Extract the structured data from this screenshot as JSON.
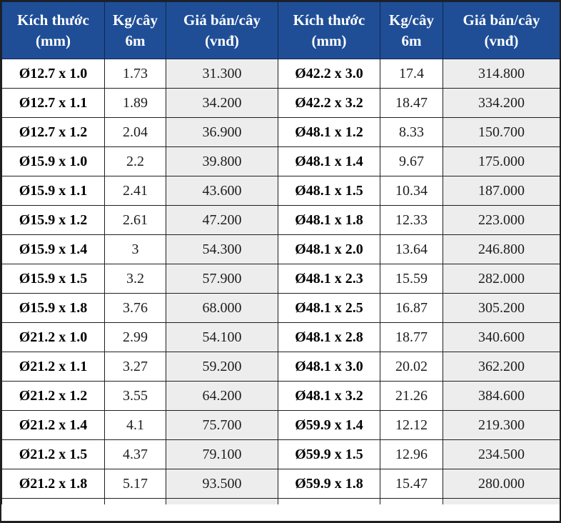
{
  "colors": {
    "header_bg": "#1F4E96",
    "price_column_bg": "#EEEDED",
    "border": "#1F1F1F",
    "header_text": "#FFFFFF"
  },
  "table": {
    "headers": [
      {
        "title": "Kích thước",
        "unit": "(mm)"
      },
      {
        "title": "Kg/cây",
        "unit": "6m"
      },
      {
        "title": "Giá bán/cây",
        "unit": "(vnđ)"
      },
      {
        "title": "Kích thước",
        "unit": "(mm)"
      },
      {
        "title": "Kg/cây",
        "unit": "6m"
      },
      {
        "title": "Giá bán/cây",
        "unit": "(vnđ)"
      }
    ],
    "rows": [
      {
        "size_left": "Ø12.7 x 1.0",
        "kg_left": "1.73",
        "price_left": "31.300",
        "size_right": "Ø42.2 x 3.0",
        "kg_right": "17.4",
        "price_right": "314.800"
      },
      {
        "size_left": "Ø12.7 x 1.1",
        "kg_left": "1.89",
        "price_left": "34.200",
        "size_right": "Ø42.2 x 3.2",
        "kg_right": "18.47",
        "price_right": "334.200"
      },
      {
        "size_left": "Ø12.7 x 1.2",
        "kg_left": "2.04",
        "price_left": "36.900",
        "size_right": "Ø48.1 x 1.2",
        "kg_right": "8.33",
        "price_right": "150.700"
      },
      {
        "size_left": "Ø15.9 x 1.0",
        "kg_left": "2.2",
        "price_left": "39.800",
        "size_right": "Ø48.1 x 1.4",
        "kg_right": "9.67",
        "price_right": "175.000"
      },
      {
        "size_left": "Ø15.9 x 1.1",
        "kg_left": "2.41",
        "price_left": "43.600",
        "size_right": "Ø48.1 x 1.5",
        "kg_right": "10.34",
        "price_right": "187.000"
      },
      {
        "size_left": "Ø15.9 x 1.2",
        "kg_left": "2.61",
        "price_left": "47.200",
        "size_right": "Ø48.1 x 1.8",
        "kg_right": "12.33",
        "price_right": "223.000"
      },
      {
        "size_left": "Ø15.9 x 1.4",
        "kg_left": "3",
        "price_left": "54.300",
        "size_right": "Ø48.1 x 2.0",
        "kg_right": "13.64",
        "price_right": "246.800"
      },
      {
        "size_left": "Ø15.9 x 1.5",
        "kg_left": "3.2",
        "price_left": "57.900",
        "size_right": "Ø48.1 x 2.3",
        "kg_right": "15.59",
        "price_right": "282.000"
      },
      {
        "size_left": "Ø15.9 x 1.8",
        "kg_left": "3.76",
        "price_left": "68.000",
        "size_right": "Ø48.1 x 2.5",
        "kg_right": "16.87",
        "price_right": "305.200"
      },
      {
        "size_left": "Ø21.2 x 1.0",
        "kg_left": "2.99",
        "price_left": "54.100",
        "size_right": "Ø48.1 x 2.8",
        "kg_right": "18.77",
        "price_right": "340.600"
      },
      {
        "size_left": "Ø21.2 x 1.1",
        "kg_left": "3.27",
        "price_left": "59.200",
        "size_right": "Ø48.1 x 3.0",
        "kg_right": "20.02",
        "price_right": "362.200"
      },
      {
        "size_left": "Ø21.2 x 1.2",
        "kg_left": "3.55",
        "price_left": "64.200",
        "size_right": "Ø48.1 x 3.2",
        "kg_right": "21.26",
        "price_right": "384.600"
      },
      {
        "size_left": "Ø21.2 x 1.4",
        "kg_left": "4.1",
        "price_left": "75.700",
        "size_right": "Ø59.9 x 1.4",
        "kg_right": "12.12",
        "price_right": "219.300"
      },
      {
        "size_left": "Ø21.2 x 1.5",
        "kg_left": "4.37",
        "price_left": "79.100",
        "size_right": "Ø59.9 x 1.5",
        "kg_right": "12.96",
        "price_right": "234.500"
      },
      {
        "size_left": "Ø21.2 x 1.8",
        "kg_left": "5.17",
        "price_left": "93.500",
        "size_right": "Ø59.9 x 1.8",
        "kg_right": "15.47",
        "price_right": "280.000"
      }
    ]
  }
}
